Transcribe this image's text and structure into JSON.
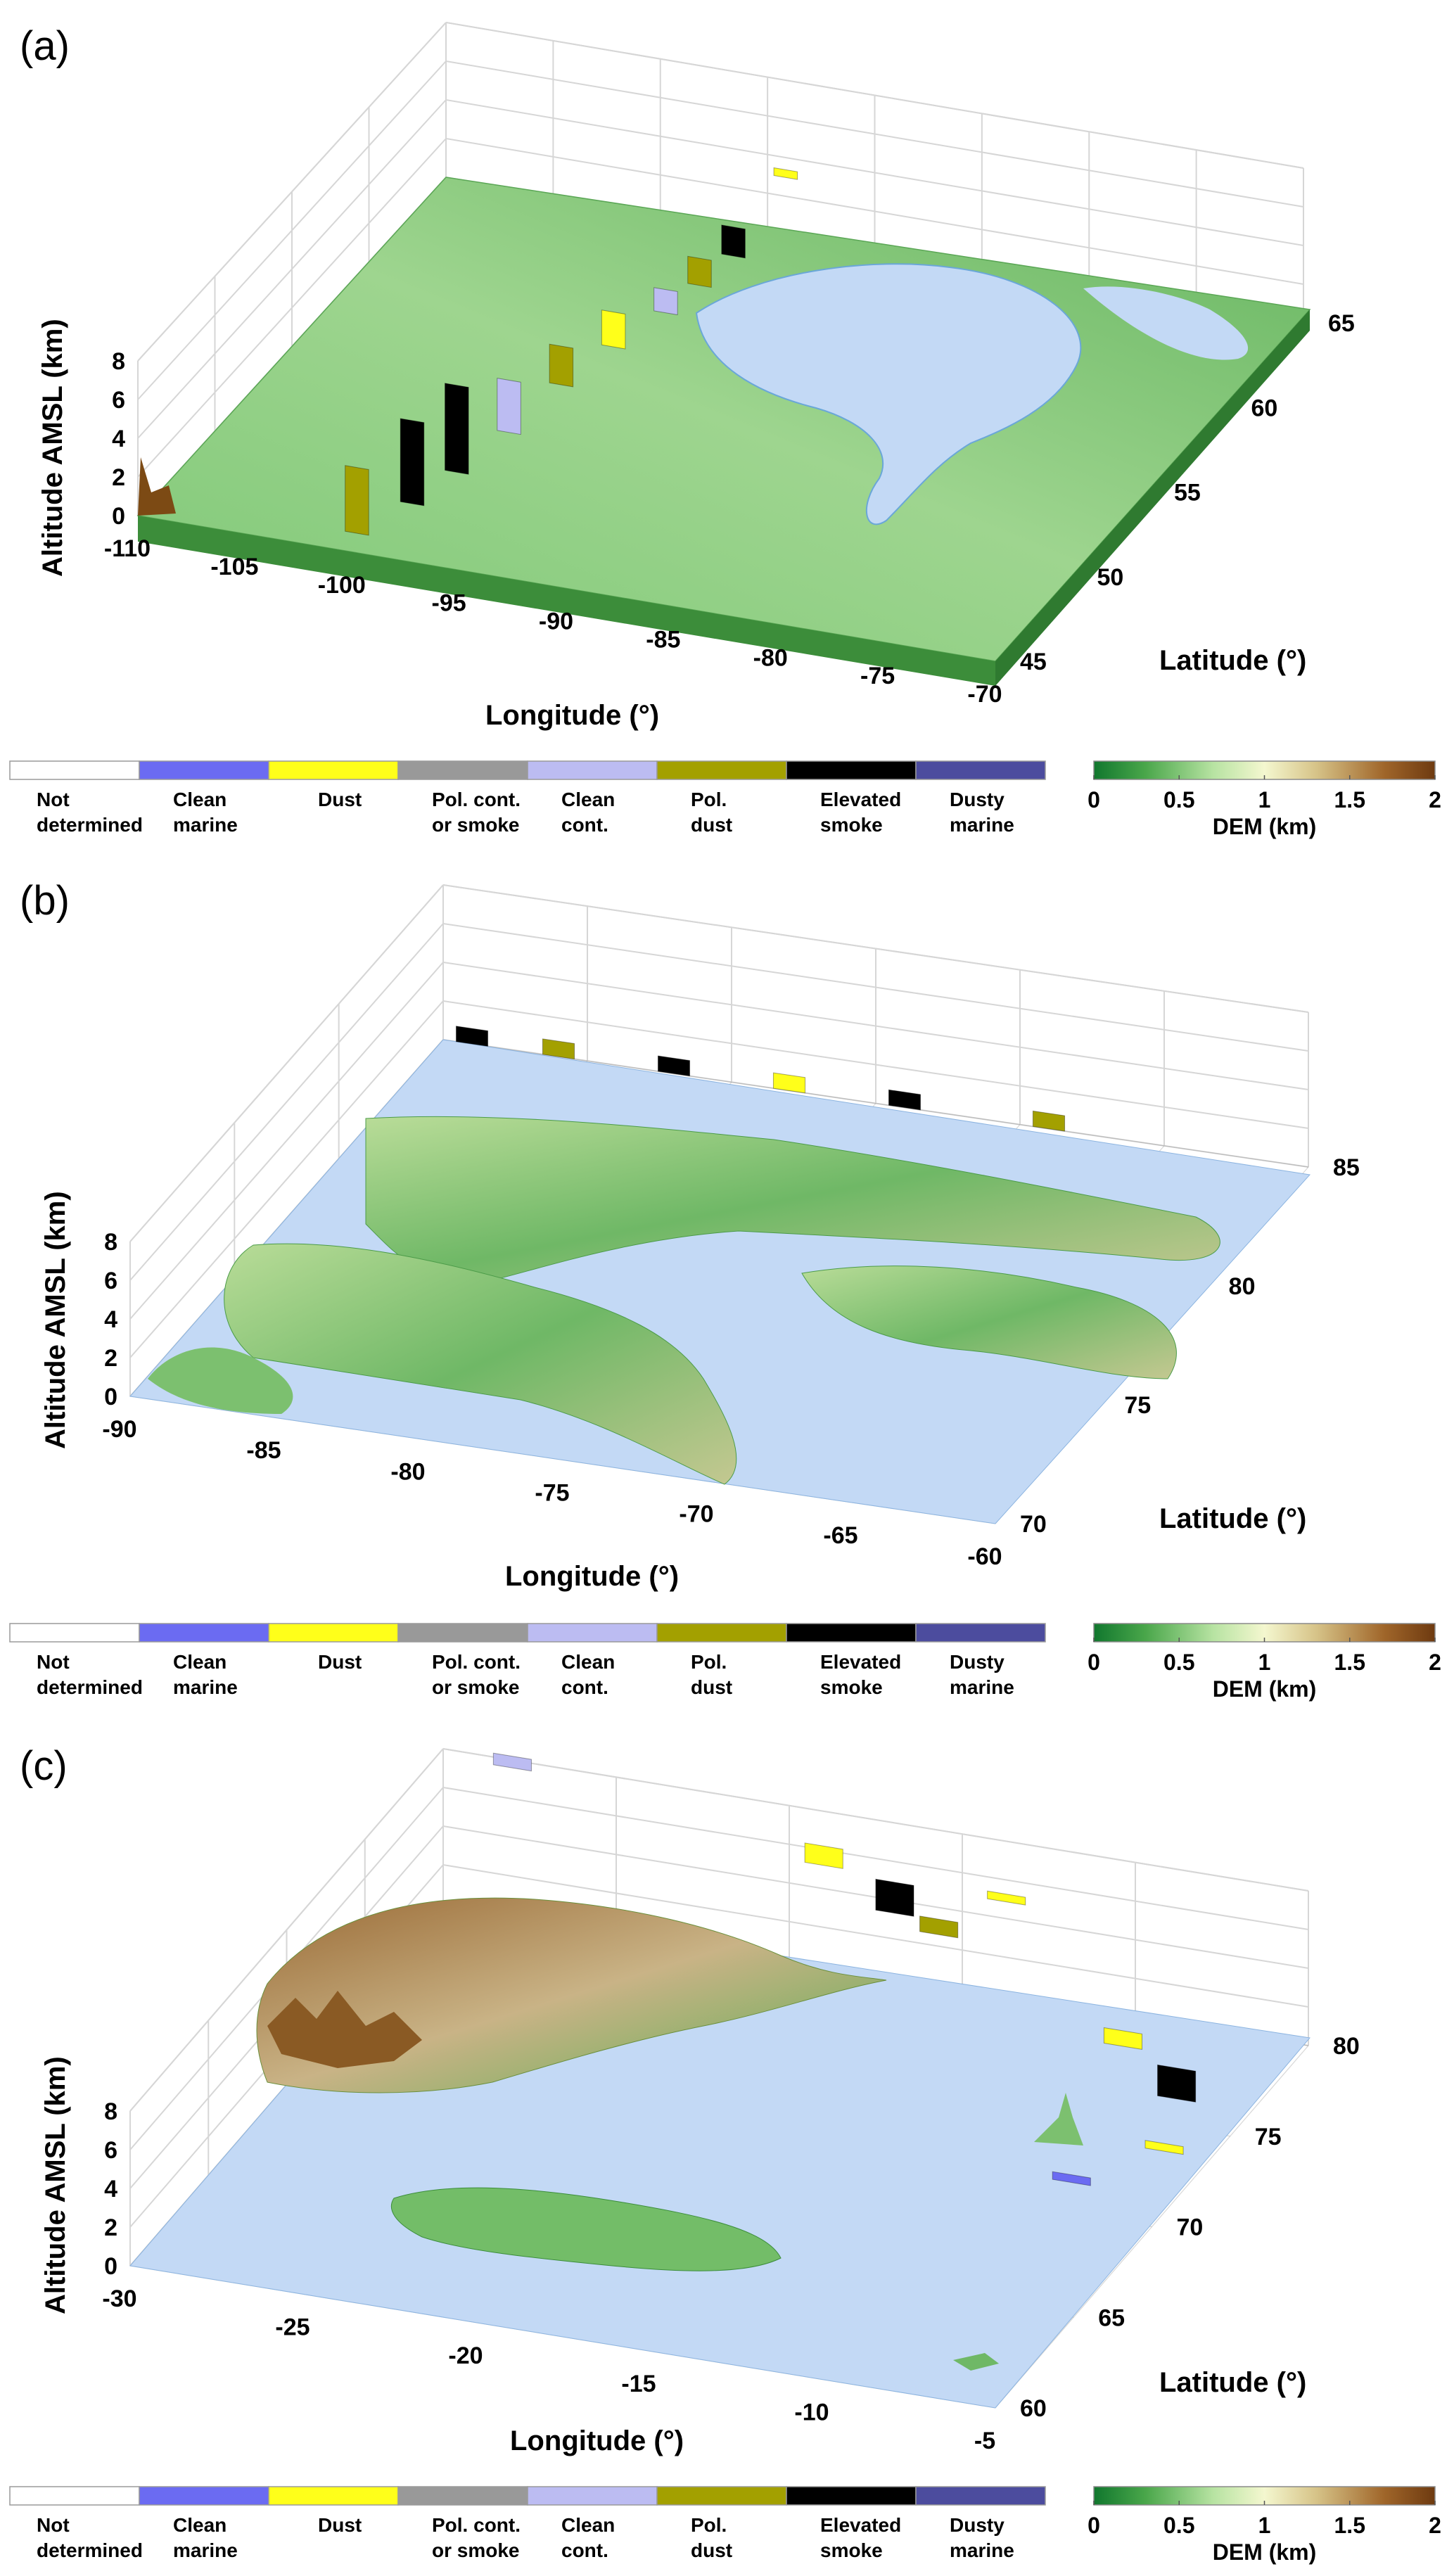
{
  "figure": {
    "colors": {
      "grid": "#d6d6d6",
      "ocean": "#c3d9f5",
      "land_low": "#3c9a3e",
      "land_mid": "#9ed58f",
      "land_high": "#e7eeb6",
      "land_peak": "#7c4a14"
    }
  },
  "aerosol_legend": {
    "entries": [
      {
        "label": "Not\ndetermined",
        "color": "#ffffff"
      },
      {
        "label": "Clean\nmarine",
        "color": "#6b6bf2"
      },
      {
        "label": "Dust",
        "color": "#ffff1a"
      },
      {
        "label": "Pol. cont.\nor smoke",
        "color": "#999999"
      },
      {
        "label": "Clean\ncont.",
        "color": "#bcbcf2"
      },
      {
        "label": "Pol.\ndust",
        "color": "#a3a000"
      },
      {
        "label": "Elevated\nsmoke",
        "color": "#000000"
      },
      {
        "label": "Dusty\nmarine",
        "color": "#4c4c9e"
      }
    ]
  },
  "dem_colorbar": {
    "label": "DEM (km)",
    "ticks": [
      "0",
      "0.5",
      "1",
      "1.5",
      "2"
    ],
    "stops": [
      "#11772e",
      "#49a64a",
      "#b7e3a2",
      "#f4f7cf",
      "#d7c489",
      "#a0662a",
      "#6e3a10"
    ]
  },
  "chart_data": [
    {
      "panel": "(a)",
      "type": "surface3d",
      "xlabel": "Longitude (°)",
      "ylabel": "Latitude (°)",
      "zlabel": "Altitude AMSL (km)",
      "xticks": [
        "-110",
        "-105",
        "-100",
        "-95",
        "-90",
        "-85",
        "-80",
        "-75",
        "-70"
      ],
      "yticks": [
        "45",
        "50",
        "55",
        "60",
        "65"
      ],
      "zticks": [
        "0",
        "2",
        "4",
        "6",
        "8"
      ],
      "xlim": [
        -110,
        -70
      ],
      "ylim": [
        45,
        65
      ],
      "zlim": [
        0,
        8
      ],
      "aerosol_columns": [
        {
          "lon": -100.5,
          "lat": 46,
          "z0": 0,
          "z1": 3.4,
          "type": "Pol. dust"
        },
        {
          "lon": -99,
          "lat": 47.5,
          "z0": 0.5,
          "z1": 4.8,
          "type": "Elevated smoke"
        },
        {
          "lon": -98,
          "lat": 49,
          "z0": 1,
          "z1": 5.5,
          "type": "Elevated smoke"
        },
        {
          "lon": -97,
          "lat": 51,
          "z0": 1.5,
          "z1": 4.2,
          "type": "Clean cont."
        },
        {
          "lon": -96,
          "lat": 53,
          "z0": 2.4,
          "z1": 4.4,
          "type": "Pol. dust"
        },
        {
          "lon": -95,
          "lat": 55,
          "z0": 2.8,
          "z1": 4.6,
          "type": "Dust"
        },
        {
          "lon": -94,
          "lat": 57,
          "z0": 3,
          "z1": 4.2,
          "type": "Clean cont."
        },
        {
          "lon": -93.5,
          "lat": 58.5,
          "z0": 3.2,
          "z1": 4.6,
          "type": "Pol. dust"
        },
        {
          "lon": -93,
          "lat": 60,
          "z0": 3.5,
          "z1": 5,
          "type": "Elevated smoke"
        },
        {
          "lon": -92,
          "lat": 62,
          "z0": 6,
          "z1": 6.4,
          "type": "Dust"
        }
      ]
    },
    {
      "panel": "(b)",
      "type": "surface3d",
      "xlabel": "Longitude (°)",
      "ylabel": "Latitude (°)",
      "zlabel": "Altitude AMSL (km)",
      "xticks": [
        "-90",
        "-85",
        "-80",
        "-75",
        "-70",
        "-65",
        "-60"
      ],
      "yticks": [
        "70",
        "75",
        "80",
        "85"
      ],
      "zticks": [
        "0",
        "2",
        "4",
        "6",
        "8"
      ],
      "xlim": [
        -90,
        -60
      ],
      "ylim": [
        70,
        85
      ],
      "zlim": [
        0,
        8
      ],
      "aerosol_columns": [
        {
          "lon": -89,
          "lat": 85,
          "z0": 0,
          "z1": 0.8,
          "type": "Elevated smoke"
        },
        {
          "lon": -86,
          "lat": 85,
          "z0": 0,
          "z1": 0.8,
          "type": "Pol. dust"
        },
        {
          "lon": -82,
          "lat": 85,
          "z0": 0,
          "z1": 0.8,
          "type": "Elevated smoke"
        },
        {
          "lon": -78,
          "lat": 85,
          "z0": 0,
          "z1": 0.8,
          "type": "Dust"
        },
        {
          "lon": -74,
          "lat": 85,
          "z0": 0,
          "z1": 0.8,
          "type": "Elevated smoke"
        },
        {
          "lon": -69,
          "lat": 85,
          "z0": 0,
          "z1": 0.8,
          "type": "Pol. dust"
        }
      ]
    },
    {
      "panel": "(c)",
      "type": "surface3d",
      "xlabel": "Longitude (°)",
      "ylabel": "Latitude (°)",
      "zlabel": "Altitude AMSL (km)",
      "xticks": [
        "-30",
        "-25",
        "-20",
        "-15",
        "-10",
        "-5"
      ],
      "yticks": [
        "60",
        "65",
        "70",
        "75",
        "80"
      ],
      "zticks": [
        "0",
        "2",
        "4",
        "6",
        "8"
      ],
      "xlim": [
        -30,
        -5
      ],
      "ylim": [
        60,
        80
      ],
      "zlim": [
        0,
        8
      ],
      "aerosol_columns": [
        {
          "lon": -28,
          "lat": 80,
          "z0": 7.6,
          "z1": 8.2,
          "type": "Clean cont."
        },
        {
          "lon": -19,
          "lat": 80,
          "z0": 5.2,
          "z1": 6.2,
          "type": "Dust"
        },
        {
          "lon": -16.5,
          "lat": 79,
          "z0": 4.4,
          "z1": 6.0,
          "type": "Elevated smoke"
        },
        {
          "lon": -15,
          "lat": 78.5,
          "z0": 4.2,
          "z1": 5.0,
          "type": "Pol. dust"
        },
        {
          "lon": -13.5,
          "lat": 79.5,
          "z0": 5.4,
          "z1": 5.8,
          "type": "Dust"
        },
        {
          "lon": -9,
          "lat": 77,
          "z0": 1.6,
          "z1": 2.4,
          "type": "Dust"
        },
        {
          "lon": -7,
          "lat": 76,
          "z0": 0.4,
          "z1": 2.0,
          "type": "Elevated smoke"
        },
        {
          "lon": -6,
          "lat": 73,
          "z0": 0.8,
          "z1": 1.2,
          "type": "Dust"
        },
        {
          "lon": -8,
          "lat": 71.5,
          "z0": 0,
          "z1": 0.4,
          "type": "Clean marine"
        }
      ]
    }
  ]
}
